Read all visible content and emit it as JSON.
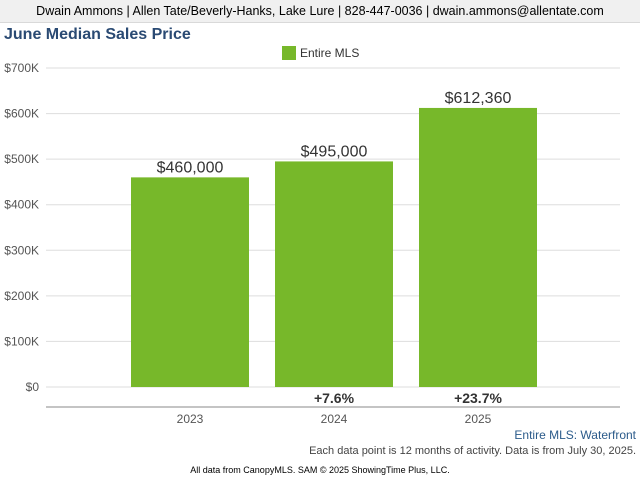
{
  "header": {
    "contact": "Dwain Ammons | Allen Tate/Beverly-Hanks, Lake Lure | 828-447-0036 | dwain.ammons@allentate.com"
  },
  "filter_label": "Entire MLS: Waterfront",
  "note": "Each data point is 12 months of activity. Data is from July 30, 2025.",
  "footer": "All data from CanopyMLS. SAM © 2025 ShowingTime Plus, LLC.",
  "colors": {
    "bar": "#77b82a",
    "grid": "#dddddd",
    "axis": "#888888"
  },
  "chart_data": {
    "type": "bar",
    "title": "June Median Sales Price",
    "legend_position": "top-center",
    "grid": true,
    "categories": [
      "2023",
      "2024",
      "2025"
    ],
    "series": [
      {
        "name": "Entire MLS",
        "values": [
          460000,
          495000,
          612360
        ],
        "value_labels": [
          "$460,000",
          "$495,000",
          "$612,360"
        ],
        "change_labels": [
          "",
          "+7.6%",
          "+23.7%"
        ]
      }
    ],
    "ylim": [
      0,
      700000
    ],
    "yticks": [
      0,
      100000,
      200000,
      300000,
      400000,
      500000,
      600000,
      700000
    ],
    "ytick_labels": [
      "$0",
      "$100K",
      "$200K",
      "$300K",
      "$400K",
      "$500K",
      "$600K",
      "$700K"
    ]
  }
}
